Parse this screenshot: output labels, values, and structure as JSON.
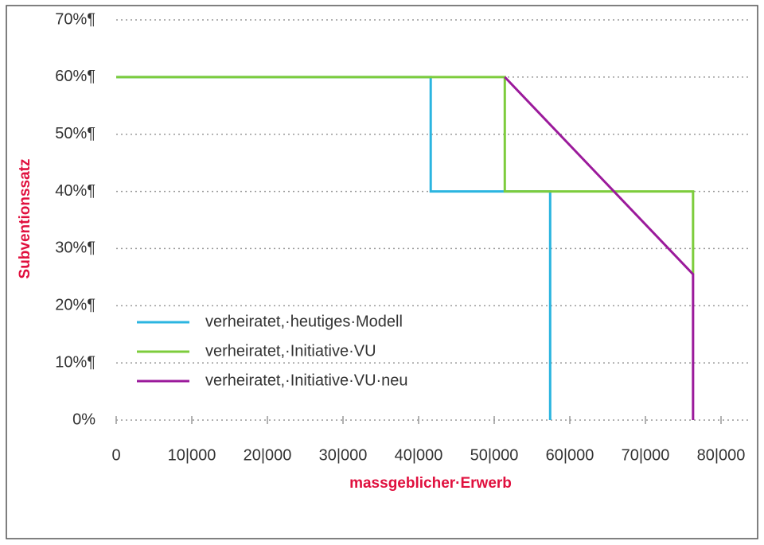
{
  "chart_data": {
    "type": "line",
    "y_label": "Subventionssatz",
    "x_label": "massgeblicher·Erwerb",
    "xlim": [
      0,
      80000
    ],
    "xticks": [
      0,
      {
        "value": 10000,
        "label": "10|000"
      },
      {
        "value": 20000,
        "label": "20|000"
      },
      {
        "value": 30000,
        "label": "30|000"
      },
      {
        "value": 40000,
        "label": "40|000"
      },
      {
        "value": 50000,
        "label": "50|000"
      },
      {
        "value": 60000,
        "label": "60|000"
      },
      {
        "value": 70000,
        "label": "70|000"
      },
      {
        "value": 80000,
        "label": "80|000"
      }
    ],
    "ylim": [
      0,
      70
    ],
    "yticks": [
      {
        "value": 0,
        "label": "0%"
      },
      {
        "value": 10,
        "label": "10%¶"
      },
      {
        "value": 20,
        "label": "20%¶"
      },
      {
        "value": 30,
        "label": "30%¶"
      },
      {
        "value": 40,
        "label": "40%¶"
      },
      {
        "value": 50,
        "label": "50%¶"
      },
      {
        "value": 60,
        "label": "60%¶"
      },
      {
        "value": 70,
        "label": "70%¶"
      }
    ],
    "grid": true,
    "legend": "lower-left",
    "series": [
      {
        "name": "verheiratet,·heutiges·Modell",
        "color": "#2bb5e0",
        "x": [
          0,
          41600,
          41600,
          57400,
          57400
        ],
        "values": [
          60,
          60,
          40,
          40,
          0
        ]
      },
      {
        "name": "verheiratet,·Initiative·VU",
        "color": "#7dcc3c",
        "x": [
          0,
          51400,
          51400,
          76300,
          76300
        ],
        "values": [
          60,
          60,
          40,
          40,
          25.5
        ]
      },
      {
        "name": "verheiratet,·Initiative·VU·neu",
        "color": "#9b1a9b",
        "x": [
          51400,
          76300,
          76300
        ],
        "values": [
          60,
          25.5,
          0
        ]
      }
    ]
  }
}
